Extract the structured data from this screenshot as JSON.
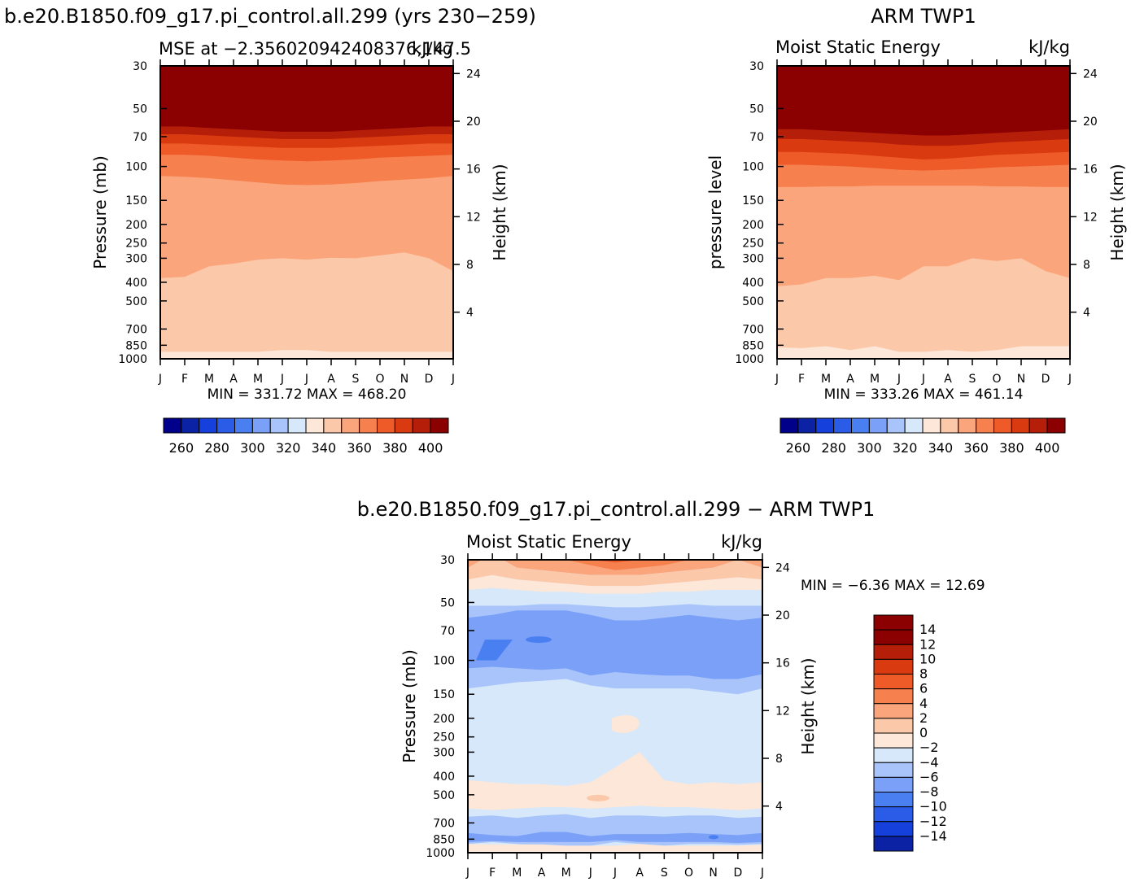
{
  "chart_data": [
    {
      "type": "heatmap",
      "title": "b.e20.B1850.f09_g17.pi_control.all.299 (yrs 230−259)",
      "subtitle_left": "MSE at −2.356020942408376,147.5",
      "subtitle_right": "kJ/kg",
      "ylabel": "Pressure (mb)",
      "ylabel_right": "Height (km)",
      "stats": "MIN = 331.72 MAX = 468.20",
      "months": [
        "J",
        "F",
        "M",
        "A",
        "M",
        "J",
        "J",
        "A",
        "S",
        "O",
        "N",
        "D",
        "J"
      ],
      "pressure_ticks": [
        "30",
        "50",
        "70",
        "100",
        "150",
        "200",
        "250",
        "300",
        "400",
        "500",
        "700",
        "850",
        "1000"
      ],
      "height_ticks": [
        "24",
        "20",
        "16",
        "12",
        "8",
        "4"
      ],
      "colorbar_labels": [
        "260",
        "280",
        "300",
        "320",
        "340",
        "360",
        "380",
        "400"
      ],
      "boundaries": [
        {
          "level": 400,
          "y": [
            55,
            55,
            57,
            58,
            59,
            60,
            60,
            60,
            59,
            58,
            57,
            56,
            55
          ]
        },
        {
          "level": 390,
          "y": [
            62,
            62,
            63,
            64,
            65,
            66,
            66,
            66,
            65,
            64,
            63,
            62,
            62
          ]
        },
        {
          "level": 380,
          "y": [
            68,
            68,
            69,
            70,
            71,
            72,
            72,
            72,
            71,
            70,
            69,
            68,
            68
          ]
        },
        {
          "level": 370,
          "y": [
            76,
            76,
            77,
            78,
            79,
            80,
            80,
            80,
            79,
            78,
            77,
            76,
            76
          ]
        },
        {
          "level": 360,
          "y": [
            87,
            87,
            88,
            90,
            92,
            93,
            94,
            93,
            92,
            90,
            89,
            88,
            87
          ]
        },
        {
          "level": 350,
          "y": [
            112,
            113,
            115,
            118,
            121,
            124,
            125,
            124,
            122,
            119,
            117,
            115,
            112
          ]
        },
        {
          "level": 340,
          "y": [
            380,
            375,
            330,
            320,
            305,
            300,
            305,
            298,
            300,
            290,
            280,
            300,
            350
          ]
        },
        {
          "level": 330,
          "y": [
            920,
            920,
            920,
            920,
            920,
            900,
            900,
            920,
            920,
            920,
            920,
            920,
            920
          ]
        }
      ]
    },
    {
      "type": "heatmap",
      "title": "ARM TWP1",
      "subtitle_left": "Moist Static Energy",
      "subtitle_right": "kJ/kg",
      "ylabel": "pressure level",
      "ylabel_right": "Height (km)",
      "stats": "MIN = 333.26 MAX = 461.14",
      "months": [
        "J",
        "F",
        "M",
        "A",
        "M",
        "J",
        "J",
        "A",
        "S",
        "O",
        "N",
        "D",
        "J"
      ],
      "pressure_ticks": [
        "30",
        "50",
        "70",
        "100",
        "150",
        "200",
        "250",
        "300",
        "400",
        "500",
        "700",
        "850",
        "1000"
      ],
      "height_ticks": [
        "24",
        "20",
        "16",
        "12",
        "8",
        "4"
      ],
      "colorbar_labels": [
        "260",
        "280",
        "300",
        "320",
        "340",
        "360",
        "380",
        "400"
      ],
      "boundaries": [
        {
          "level": 400,
          "y": [
            55,
            55,
            56,
            57,
            58,
            59,
            60,
            60,
            59,
            58,
            57,
            56,
            55
          ]
        },
        {
          "level": 390,
          "y": [
            64,
            64,
            65,
            66,
            67,
            68,
            69,
            69,
            68,
            67,
            66,
            65,
            64
          ]
        },
        {
          "level": 380,
          "y": [
            72,
            72,
            73,
            74,
            75,
            77,
            78,
            78,
            77,
            75,
            74,
            73,
            72
          ]
        },
        {
          "level": 370,
          "y": [
            84,
            84,
            85,
            86,
            88,
            90,
            92,
            91,
            89,
            87,
            86,
            85,
            84
          ]
        },
        {
          "level": 360,
          "y": [
            98,
            98,
            99,
            100,
            102,
            104,
            105,
            104,
            103,
            101,
            100,
            99,
            98
          ]
        },
        {
          "level": 350,
          "y": [
            128,
            128,
            127,
            127,
            126,
            126,
            126,
            126,
            126,
            127,
            127,
            128,
            128
          ]
        },
        {
          "level": 340,
          "y": [
            420,
            410,
            380,
            380,
            370,
            390,
            330,
            330,
            300,
            310,
            300,
            350,
            380
          ]
        },
        {
          "level": 330,
          "y": [
            870,
            880,
            860,
            900,
            860,
            920,
            920,
            900,
            920,
            900,
            860,
            860,
            860
          ]
        }
      ]
    },
    {
      "type": "heatmap",
      "title": "b.e20.B1850.f09_g17.pi_control.all.299 − ARM TWP1",
      "subtitle_left": "Moist Static Energy",
      "subtitle_right": "kJ/kg",
      "ylabel": "Pressure (mb)",
      "ylabel_right": "Height (km)",
      "stats": "MIN =   −6.36 MAX =   12.69",
      "months": [
        "J",
        "F",
        "M",
        "A",
        "M",
        "J",
        "J",
        "A",
        "S",
        "O",
        "N",
        "D",
        "J"
      ],
      "pressure_ticks": [
        "30",
        "50",
        "70",
        "100",
        "150",
        "200",
        "250",
        "300",
        "400",
        "500",
        "700",
        "850",
        "1000"
      ],
      "height_ticks": [
        "24",
        "20",
        "16",
        "12",
        "8",
        "4"
      ],
      "colorbar_labels": [
        "14",
        "12",
        "10",
        "8",
        "6",
        "4",
        "2",
        "0",
        "−2",
        "−4",
        "−6",
        "−8",
        "−10",
        "−12",
        "−14"
      ]
    }
  ]
}
